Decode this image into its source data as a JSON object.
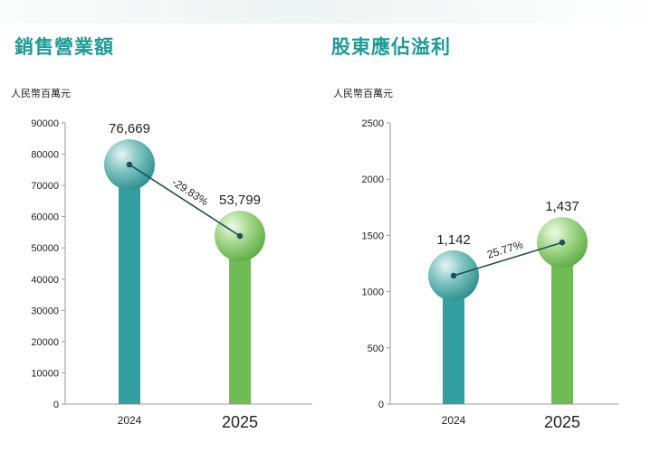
{
  "colors": {
    "title": "#1f9a96",
    "bar_2024": "#32a0a0",
    "bar_2025": "#6fbc57",
    "ball_2024_light": "#e4f4f3",
    "ball_2024_dark": "#2a8f8e",
    "ball_2025_light": "#eef9e4",
    "ball_2025_dark": "#5cab43",
    "connector": "#1d4f5c"
  },
  "chart_data": [
    {
      "type": "bar",
      "title": "銷售營業額",
      "ylabel": "人民幣百萬元",
      "categories": [
        "2024",
        "2025"
      ],
      "values": [
        76669,
        53799
      ],
      "value_labels": [
        "76,669",
        "53,799"
      ],
      "change_label": "-29.83%",
      "ylim": [
        0,
        90000
      ],
      "yticks": [
        "0",
        "10000",
        "20000",
        "30000",
        "40000",
        "50000",
        "60000",
        "70000",
        "80000",
        "90000"
      ],
      "grid": false
    },
    {
      "type": "bar",
      "title": "股東應佔溢利",
      "ylabel": "人民幣百萬元",
      "categories": [
        "2024",
        "2025"
      ],
      "values": [
        1142,
        1437
      ],
      "value_labels": [
        "1,142",
        "1,437"
      ],
      "change_label": "25.77%",
      "ylim": [
        0,
        2500
      ],
      "yticks": [
        "0",
        "500",
        "1000",
        "1500",
        "2000",
        "2500"
      ],
      "grid": false
    }
  ]
}
